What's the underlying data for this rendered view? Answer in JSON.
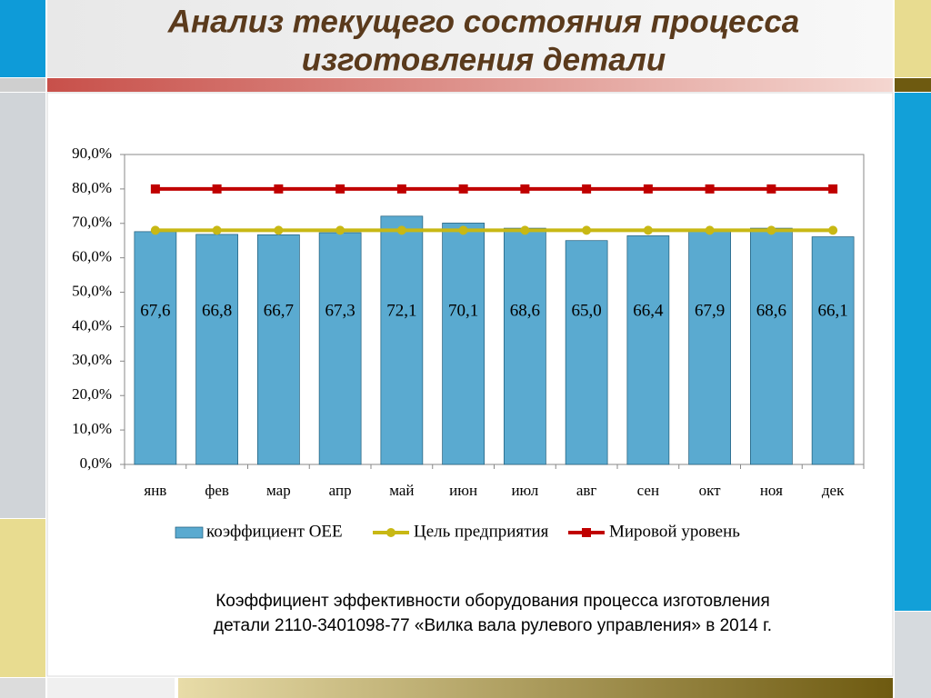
{
  "chart_data": {
    "type": "bar",
    "title": [
      "Анализ текущего состояния процесса",
      "изготовления детали"
    ],
    "caption": [
      "Коэффициент эффективности оборудования процесса изготовления",
      "детали 2110-3401098-77 «Вилка вала рулевого управления» в 2014 г."
    ],
    "categories": [
      "янв",
      "фев",
      "мар",
      "апр",
      "май",
      "июн",
      "июл",
      "авг",
      "сен",
      "окт",
      "ноя",
      "дек"
    ],
    "series": [
      {
        "name": "коэффициент OEE",
        "type": "bar",
        "color": "#5aaad0",
        "values": [
          67.6,
          66.8,
          66.7,
          67.3,
          72.1,
          70.1,
          68.6,
          65.0,
          66.4,
          67.9,
          68.6,
          66.1
        ],
        "value_labels": [
          "67,6",
          "66,8",
          "66,7",
          "67,3",
          "72,1",
          "70,1",
          "68,6",
          "65,0",
          "66,4",
          "67,9",
          "68,6",
          "66,1"
        ]
      },
      {
        "name": "Цель предприятия",
        "type": "line",
        "color": "#c8b814",
        "marker": "circle",
        "values": [
          68,
          68,
          68,
          68,
          68,
          68,
          68,
          68,
          68,
          68,
          68,
          68
        ]
      },
      {
        "name": "Мировой уровень",
        "type": "line",
        "color": "#c00000",
        "marker": "square",
        "values": [
          80,
          80,
          80,
          80,
          80,
          80,
          80,
          80,
          80,
          80,
          80,
          80
        ]
      }
    ],
    "ylim": [
      0,
      90
    ],
    "yticks": [
      {
        "value": 0,
        "label": "0,0%"
      },
      {
        "value": 10,
        "label": "10,0%"
      },
      {
        "value": 20,
        "label": "20,0%"
      },
      {
        "value": 30,
        "label": "30,0%"
      },
      {
        "value": 40,
        "label": "40,0%"
      },
      {
        "value": 50,
        "label": "50,0%"
      },
      {
        "value": 60,
        "label": "60,0%"
      },
      {
        "value": 70,
        "label": "70,0%"
      },
      {
        "value": 80,
        "label": "80,0%"
      },
      {
        "value": 90,
        "label": "90,0%"
      }
    ],
    "grid": false,
    "legend": "bottom"
  }
}
